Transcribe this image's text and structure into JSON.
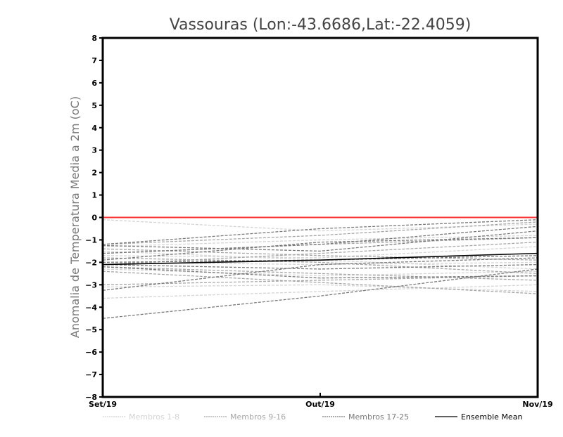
{
  "chart_data": {
    "type": "line",
    "title": "Vassouras (Lon:-43.6686,Lat:-22.4059)",
    "xlabel": "",
    "ylabel": "Anomalia de Temperatura Media a 2m (oC)",
    "x": [
      "Set/19",
      "Out/19",
      "Nov/19"
    ],
    "ylim": [
      -8,
      8
    ],
    "yticks": [
      -8,
      -7,
      -6,
      -5,
      -4,
      -3,
      -2,
      -1,
      0,
      1,
      2,
      3,
      4,
      5,
      6,
      7,
      8
    ],
    "grid": false,
    "reference_line": {
      "value": 0,
      "color": "#ff3030"
    },
    "groups": [
      {
        "name": "Membros 1-8",
        "color": "#d4d4d4",
        "style": "dashed",
        "series": [
          [
            -0.1,
            -0.6,
            -0.3
          ],
          [
            -1.3,
            -1.0,
            -0.8
          ],
          [
            -1.7,
            -1.8,
            -1.3
          ],
          [
            -2.0,
            -2.1,
            -2.0
          ],
          [
            -2.3,
            -2.6,
            -2.4
          ],
          [
            -3.1,
            -3.0,
            -3.3
          ],
          [
            -3.6,
            -3.3,
            -3.0
          ],
          [
            -1.5,
            -1.9,
            -2.3
          ]
        ]
      },
      {
        "name": "Membros 9-16",
        "color": "#a6a6a6",
        "style": "dashed",
        "series": [
          [
            -1.2,
            -0.8,
            -0.2
          ],
          [
            -1.6,
            -1.2,
            -0.9
          ],
          [
            -1.8,
            -2.0,
            -2.5
          ],
          [
            -2.1,
            -1.6,
            -1.1
          ],
          [
            -2.2,
            -2.5,
            -2.8
          ],
          [
            -3.0,
            -2.8,
            -2.6
          ],
          [
            -1.4,
            -1.7,
            -1.9
          ],
          [
            -2.4,
            -2.9,
            -3.4
          ]
        ]
      },
      {
        "name": "Membros 17-25",
        "color": "#7a7a7a",
        "style": "dashed",
        "series": [
          [
            -1.2,
            -0.5,
            -0.1
          ],
          [
            -1.25,
            -1.5,
            -0.6
          ],
          [
            -1.6,
            -1.2,
            -0.4
          ],
          [
            -2.0,
            -1.9,
            -1.7
          ],
          [
            -2.1,
            -2.3,
            -2.1
          ],
          [
            -2.2,
            -2.7,
            -2.6
          ],
          [
            -3.25,
            -2.1,
            -1.8
          ],
          [
            -4.5,
            -3.5,
            -2.3
          ],
          [
            -1.9,
            -1.1,
            -0.9
          ]
        ]
      },
      {
        "name": "Ensemble Mean",
        "color": "#000000",
        "style": "solid",
        "series": [
          [
            -2.1,
            -1.9,
            -1.6
          ]
        ]
      }
    ]
  }
}
